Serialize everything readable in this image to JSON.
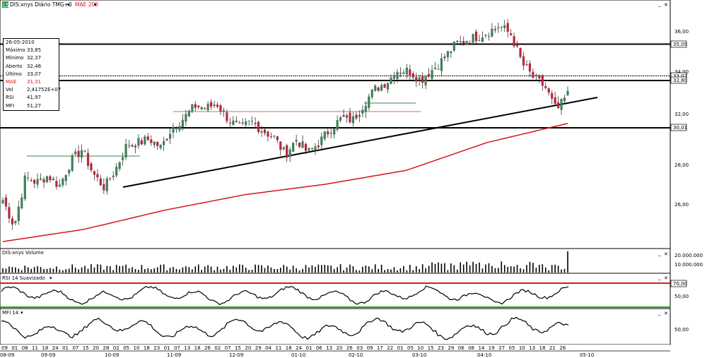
{
  "header": {
    "logo_text": "LS",
    "symbol_label": "DIS:xnys Diário TMG+0",
    "ma_label": "MAE 200"
  },
  "infobox": {
    "date": "26-05-2010",
    "rows": [
      {
        "label": "Máximo",
        "value": "33,85"
      },
      {
        "label": "Mínimo",
        "value": "32,37"
      },
      {
        "label": "Aberto",
        "value": "32,46"
      },
      {
        "label": "Último",
        "value": "33,07"
      },
      {
        "label": "MAE",
        "value": "31,31"
      },
      {
        "label": "Vol",
        "value": "2,41752E+07"
      },
      {
        "label": "RSI",
        "value": "41,97"
      },
      {
        "label": "MFI",
        "value": "51,27"
      }
    ]
  },
  "panels": {
    "volume_title": "DIS:xnys Volume",
    "rsi_title": "RSI 14 Suavizado",
    "mfi_title": "MFI 14"
  },
  "colors": {
    "up": "#3f7f5a",
    "down": "#b8263a",
    "ma": "#d8141a",
    "rsi_upper": "#d21e1e",
    "rsi_lower": "#1aa81a"
  },
  "chart_data": [
    {
      "type": "candlestick",
      "title": "DIS:xnys Diário TMG+0",
      "ylim": [
        24.2,
        38.5
      ],
      "y_ticks": [
        "36,00",
        "34,00",
        "32,00",
        "30,00",
        "28,00",
        "26,00"
      ],
      "price_labels": [
        "35,09",
        "33,07",
        "32,80",
        "30,01"
      ],
      "horizontal_levels": [
        35.09,
        32.8,
        30.01
      ],
      "series": [
        {
          "name": "MAE 200",
          "values": [
            24.6,
            25.3,
            26.4,
            27.3,
            27.9,
            28.7,
            30.3,
            31.4
          ]
        }
      ],
      "close_path": [
        27.0,
        25.5,
        28.3,
        28.0,
        28.4,
        27.8,
        29.2,
        29.9,
        28.5,
        27.7,
        28.8,
        30.2,
        30.3,
        30.5,
        30.0,
        31.2,
        31.7,
        32.4,
        32.3,
        32.5,
        31.6,
        31.1,
        31.5,
        31.0,
        30.6,
        29.6,
        30.5,
        29.7,
        30.3,
        31.1,
        31.7,
        31.6,
        32.6,
        33.4,
        33.8,
        34.5,
        34.4,
        33.9,
        34.5,
        35.1,
        35.9,
        36.2,
        36.4,
        36.7,
        37.0,
        36.5,
        34.8,
        34.0,
        33.5,
        32.1,
        33.07
      ]
    },
    {
      "type": "bar",
      "title": "DIS:xnys Volume",
      "y_ticks": [
        "20.000.000",
        "10.000.000"
      ]
    },
    {
      "type": "line",
      "title": "RSI 14 Suavizado",
      "y_ticks": [
        "70,00",
        "50,00"
      ],
      "levels": [
        70,
        30
      ]
    },
    {
      "type": "line",
      "title": "MFI 14",
      "y_ticks": [
        "50,00"
      ]
    }
  ],
  "x_axis": {
    "day_labels": [
      "09",
      "01",
      "08",
      "11",
      "18",
      "24",
      "01",
      "07",
      "15",
      "20",
      "28",
      "02",
      "05",
      "10",
      "18",
      "23",
      "01",
      "07",
      "13",
      "18",
      "26",
      "02",
      "07",
      "15",
      "20",
      "29",
      "04",
      "11",
      "18",
      "24",
      "01",
      "06",
      "13",
      "20",
      "26",
      "03",
      "09",
      "17",
      "22",
      "01",
      "05",
      "10",
      "15",
      "23",
      "29",
      "06",
      "08",
      "14",
      "19",
      "27",
      "05",
      "10",
      "13",
      "18",
      "21",
      "26"
    ],
    "month_labels": [
      "08-09",
      "09-09",
      "10-09",
      "11-09",
      "12-09",
      "01-10",
      "02-10",
      "03-10",
      "04-10",
      "05-10"
    ],
    "date_highlight": "26"
  }
}
